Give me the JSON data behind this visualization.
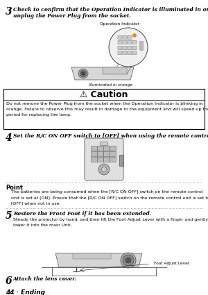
{
  "bg_color": "#ffffff",
  "page_num": "44",
  "page_label": "Ending",
  "step3_bold": "3",
  "step3_text1": "Check to confirm that the Operation Indicator is illuminated in orange, and then",
  "step3_text2": "unplug the Power Plug from the socket.",
  "label_operation_indicator": "Operation Indicator",
  "label_illuminated": "Illuminated in orange",
  "caution_title": "⚠ Caution",
  "caution_body1": "Do not remove the Power Plug from the socket when the Operation Indicator is blinking in",
  "caution_body2": "orange. Failure to observe this may result in damage to the equipment and will speed up the",
  "caution_body3": "period for replacing the lamp.",
  "step4_bold": "4",
  "step4_text": "Set the R/C ON OFF switch to [OFF] when using the remote control.",
  "point_title": "Point",
  "point_body1": "The batteries are being consumed when the [R/C ON OFF] switch on the remote control",
  "point_body2": "unit is set at [ON]. Ensure that the [R/C ON OFF] switch on the remote control unit is set to",
  "point_body3": "[OFF] when not in use.",
  "step5_bold": "5",
  "step5_text": "Restore the Front Foot if it has been extended.",
  "step5_sub1": "Steady the projector by hand, and then lift the Foot Adjust Lever with a finger and gently",
  "step5_sub2": "lower it into the main Unit.",
  "label_foot": "Foot Adjust Lever",
  "step6_bold": "6",
  "step6_text": "Attach the lens cover.",
  "page_footer": "44 · Ending",
  "caution_border": "#000000",
  "dashed_line_color": "#aaaaaa",
  "text_color": "#000000"
}
